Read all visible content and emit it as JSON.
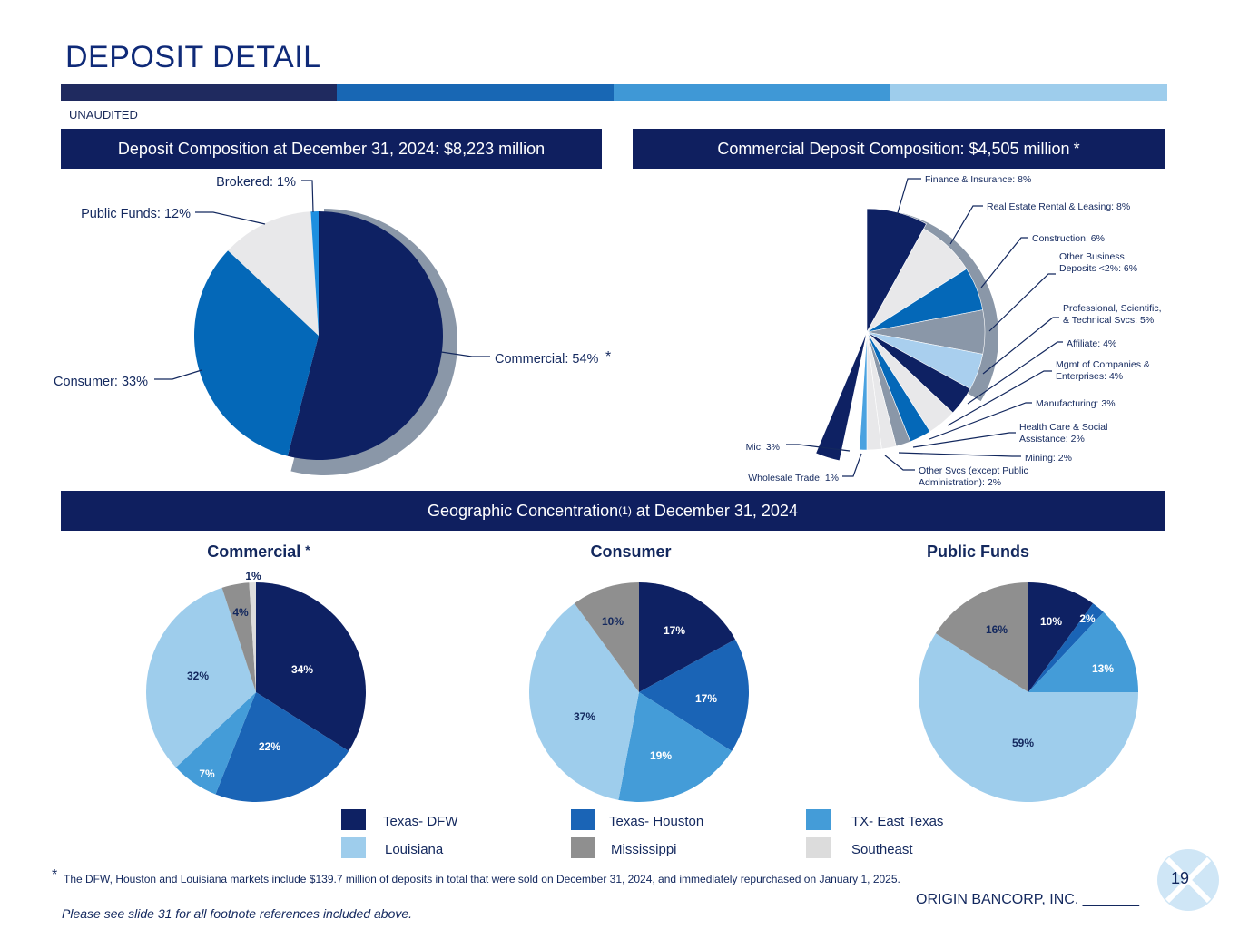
{
  "header": {
    "title": "DEPOSIT DETAIL",
    "unaudited": "UNAUDITED"
  },
  "accent_bars": [
    "#1f2a5f",
    "#1867b4",
    "#3f98d6",
    "#9ecdec"
  ],
  "banners": {
    "deposit": "Deposit Composition at December 31, 2024: $8,223 million",
    "commercial": "Commercial Deposit Composition: $4,505 million",
    "commercial_star": "*",
    "geo_pre": "Geographic Concentration",
    "geo_sup": "(1)",
    "geo_post": " at December 31, 2024"
  },
  "subtitles": {
    "commercial": "Commercial",
    "commercial_star": "*",
    "consumer": "Consumer",
    "public_funds": "Public Funds"
  },
  "chart_data": [
    {
      "id": "deposit_composition",
      "type": "pie",
      "title": "Deposit Composition at December 31, 2024: $8,223 million",
      "labels": [
        "Commercial: 54%",
        "Consumer: 33%",
        "Public Funds: 12%",
        "Brokered: 1%"
      ],
      "values": [
        54,
        33,
        12,
        1
      ],
      "colors": [
        "#0e2163",
        "#0468b8",
        "#e8e8ea",
        "#1e8fe0"
      ],
      "exploded": "Commercial",
      "star_label": "*"
    },
    {
      "id": "commercial_composition",
      "type": "pie",
      "title": "Commercial Deposit Composition: $4,505 million",
      "labels": [
        "Finance & Insurance: 8%",
        "Real Estate Rental & Leasing: 8%",
        "Construction: 6%",
        "Other Business Deposits <2%: 6%",
        "Professional, Scientific, & Technical Svcs: 5%",
        "Affiliate: 4%",
        "Mgmt of Companies & Enterprises: 4%",
        "Manufacturing: 3%",
        "Health Care & Social Assistance: 2%",
        "Mining: 2%",
        "Other Svcs (except Public Administration): 2%",
        "Wholesale Trade: 1%",
        "Mic: 3%"
      ],
      "values": [
        8,
        8,
        6,
        6,
        5,
        4,
        4,
        3,
        2,
        2,
        2,
        1,
        3
      ],
      "colors": [
        "#0e2163",
        "#e8e8ea",
        "#0468b8",
        "#8a97a8",
        "#a9cfee",
        "#0e2163",
        "#e8e8ea",
        "#0468b8",
        "#8a97a8",
        "#e8e8ea",
        "#e8e8ea",
        "#4aa2e0",
        "#0e2163"
      ]
    },
    {
      "id": "geo_commercial",
      "type": "pie",
      "title": "Commercial",
      "categories": [
        "Texas- DFW",
        "Texas- Houston",
        "TX- East Texas",
        "Louisiana",
        "Mississippi",
        "Southeast"
      ],
      "values": [
        34,
        22,
        7,
        32,
        4,
        1
      ],
      "labels": [
        "34%",
        "22%",
        "7%",
        "32%",
        "4%",
        "1%"
      ]
    },
    {
      "id": "geo_consumer",
      "type": "pie",
      "title": "Consumer",
      "categories": [
        "Texas- DFW",
        "Texas- Houston",
        "TX- East Texas",
        "Louisiana",
        "Mississippi",
        "Southeast"
      ],
      "values": [
        17,
        17,
        19,
        37,
        10,
        0
      ],
      "labels": [
        "17%",
        "17%",
        "19%",
        "37%",
        "10%",
        ""
      ]
    },
    {
      "id": "geo_public_funds",
      "type": "pie",
      "title": "Public Funds",
      "categories": [
        "Texas- DFW",
        "Texas- Houston",
        "TX- East Texas",
        "Louisiana",
        "Mississippi",
        "Southeast"
      ],
      "values": [
        10,
        2,
        13,
        59,
        16,
        0
      ],
      "labels": [
        "10%",
        "2%",
        "13%",
        "59%",
        "16%",
        ""
      ]
    }
  ],
  "legend": [
    {
      "label": "Texas- DFW",
      "color": "#0e2163"
    },
    {
      "label": "Texas- Houston",
      "color": "#1a64b6"
    },
    {
      "label": "TX- East Texas",
      "color": "#449cd8"
    },
    {
      "label": "Louisiana",
      "color": "#9ecdec"
    },
    {
      "label": "Mississippi",
      "color": "#8f8f8f"
    },
    {
      "label": "Southeast",
      "color": "#dcdcdc"
    }
  ],
  "footer": {
    "star": "*",
    "note": "The DFW, Houston and Louisiana markets include $139.7 million of deposits in total that were sold on December 31, 2024, and immediately repurchased on January 1, 2025.",
    "see": "Please see slide 31 for all footnote references included above.",
    "company": "ORIGIN BANCORP, INC. _______",
    "page": "19"
  }
}
